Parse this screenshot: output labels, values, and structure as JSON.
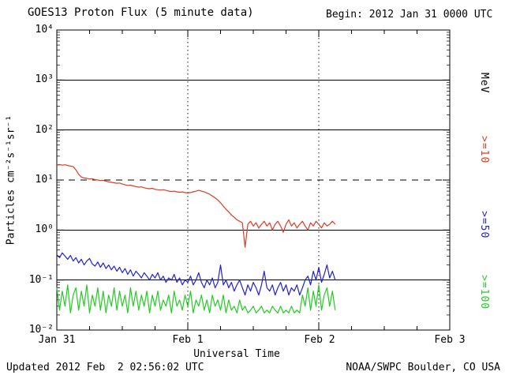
{
  "header": {
    "title": "GOES13 Proton Flux (5 minute data)",
    "begin": "Begin: 2012 Jan 31 0000 UTC"
  },
  "footer": {
    "updated": "Updated 2012 Feb  2 02:56:02 UTC",
    "credit": "NOAA/SWPC Boulder, CO USA"
  },
  "axes": {
    "y_label": "Particles cm⁻²s⁻¹sr⁻¹",
    "y_ticks": [
      "10⁴",
      "10³",
      "10²",
      "10¹",
      "10⁰",
      "10⁻¹",
      "10⁻²"
    ],
    "x_ticks": [
      "Jan 31",
      "Feb 1",
      "Feb 2",
      "Feb 3"
    ],
    "x_label": "Universal Time"
  },
  "right_axis": {
    "unit": "MeV",
    "labels": [
      ">=10",
      ">=50",
      ">=100"
    ]
  },
  "chart_data": {
    "type": "line",
    "title": "GOES13 Proton Flux (5 minute data)",
    "xlabel": "Universal Time",
    "ylabel": "Particles cm^-2 s^-1 sr^-1",
    "y_scale": "log",
    "ylim": [
      0.01,
      10000
    ],
    "x_unit": "hours since 2012 Jan 31 0000 UTC",
    "x_range_hours": [
      0,
      72
    ],
    "x_day_ticks": [
      {
        "t": 0,
        "label": "Jan 31"
      },
      {
        "t": 24,
        "label": "Feb 1"
      },
      {
        "t": 48,
        "label": "Feb 2"
      },
      {
        "t": 72,
        "label": "Feb 3"
      }
    ],
    "threshold_line": {
      "value": 10,
      "style": "dashed"
    },
    "grid": "solid horizontal line at each decade, dotted vertical line at day boundaries",
    "legend_position": "right-margin vertical labels",
    "series": [
      {
        "name": ">=10 MeV",
        "color": "#e03a21",
        "t0": 0,
        "dt": 0.5,
        "values": [
          20,
          20.5,
          19.8,
          20.2,
          19.5,
          19.0,
          18.5,
          16.0,
          13.0,
          11.5,
          11.0,
          10.8,
          10.5,
          10.6,
          10.2,
          10.0,
          9.8,
          9.9,
          9.5,
          9.2,
          9.0,
          8.8,
          8.6,
          8.7,
          8.3,
          8.0,
          7.8,
          7.9,
          7.6,
          7.4,
          7.2,
          7.3,
          7.0,
          6.8,
          6.7,
          6.8,
          6.5,
          6.4,
          6.3,
          6.4,
          6.2,
          6.0,
          5.9,
          6.0,
          5.8,
          5.7,
          5.8,
          5.6,
          5.5,
          5.6,
          5.8,
          6.0,
          6.2,
          6.0,
          5.8,
          5.5,
          5.2,
          4.8,
          4.4,
          4.0,
          3.5,
          3.0,
          2.6,
          2.3,
          2.0,
          1.8,
          1.6,
          1.5,
          1.4,
          0.45,
          1.3,
          1.5,
          1.2,
          1.4,
          1.1,
          1.3,
          1.5,
          1.2,
          1.4,
          1.0,
          1.3,
          1.5,
          1.2,
          0.9,
          1.3,
          1.6,
          1.2,
          1.4,
          1.1,
          1.3,
          1.5,
          1.2,
          1.0,
          1.4,
          1.2,
          1.5,
          1.3,
          1.1,
          1.4,
          1.2,
          1.3,
          1.5,
          1.3
        ]
      },
      {
        "name": ">=50 MeV",
        "color": "#2222cc",
        "t0": 0,
        "dt": 0.5,
        "values": [
          0.32,
          0.28,
          0.35,
          0.3,
          0.26,
          0.31,
          0.24,
          0.28,
          0.22,
          0.26,
          0.2,
          0.24,
          0.27,
          0.21,
          0.19,
          0.23,
          0.18,
          0.22,
          0.17,
          0.2,
          0.16,
          0.19,
          0.15,
          0.18,
          0.14,
          0.17,
          0.13,
          0.16,
          0.12,
          0.15,
          0.13,
          0.11,
          0.14,
          0.12,
          0.1,
          0.13,
          0.11,
          0.14,
          0.1,
          0.12,
          0.09,
          0.11,
          0.1,
          0.13,
          0.09,
          0.11,
          0.08,
          0.1,
          0.09,
          0.12,
          0.08,
          0.1,
          0.14,
          0.09,
          0.07,
          0.1,
          0.08,
          0.11,
          0.07,
          0.09,
          0.2,
          0.08,
          0.1,
          0.07,
          0.09,
          0.06,
          0.08,
          0.1,
          0.07,
          0.05,
          0.08,
          0.06,
          0.09,
          0.07,
          0.05,
          0.08,
          0.15,
          0.07,
          0.06,
          0.08,
          0.05,
          0.07,
          0.09,
          0.06,
          0.08,
          0.05,
          0.07,
          0.06,
          0.08,
          0.05,
          0.07,
          0.1,
          0.12,
          0.08,
          0.15,
          0.1,
          0.18,
          0.09,
          0.13,
          0.2,
          0.11,
          0.15,
          0.1
        ]
      },
      {
        "name": ">=100 MeV",
        "color": "#22cc22",
        "t0": 0,
        "dt": 0.5,
        "values": [
          0.07,
          0.025,
          0.06,
          0.03,
          0.08,
          0.022,
          0.05,
          0.07,
          0.025,
          0.06,
          0.03,
          0.08,
          0.022,
          0.05,
          0.03,
          0.07,
          0.025,
          0.06,
          0.022,
          0.05,
          0.03,
          0.07,
          0.025,
          0.06,
          0.03,
          0.05,
          0.022,
          0.07,
          0.03,
          0.06,
          0.025,
          0.05,
          0.03,
          0.06,
          0.022,
          0.05,
          0.03,
          0.06,
          0.025,
          0.04,
          0.03,
          0.05,
          0.022,
          0.06,
          0.03,
          0.04,
          0.025,
          0.05,
          0.03,
          0.06,
          0.022,
          0.04,
          0.03,
          0.05,
          0.025,
          0.04,
          0.022,
          0.05,
          0.03,
          0.04,
          0.025,
          0.05,
          0.022,
          0.04,
          0.025,
          0.03,
          0.022,
          0.04,
          0.025,
          0.03,
          0.022,
          0.025,
          0.03,
          0.022,
          0.025,
          0.03,
          0.022,
          0.025,
          0.022,
          0.03,
          0.025,
          0.022,
          0.03,
          0.022,
          0.025,
          0.022,
          0.03,
          0.022,
          0.025,
          0.022,
          0.05,
          0.03,
          0.07,
          0.025,
          0.06,
          0.03,
          0.08,
          0.025,
          0.05,
          0.07,
          0.03,
          0.06,
          0.025
        ]
      }
    ]
  }
}
